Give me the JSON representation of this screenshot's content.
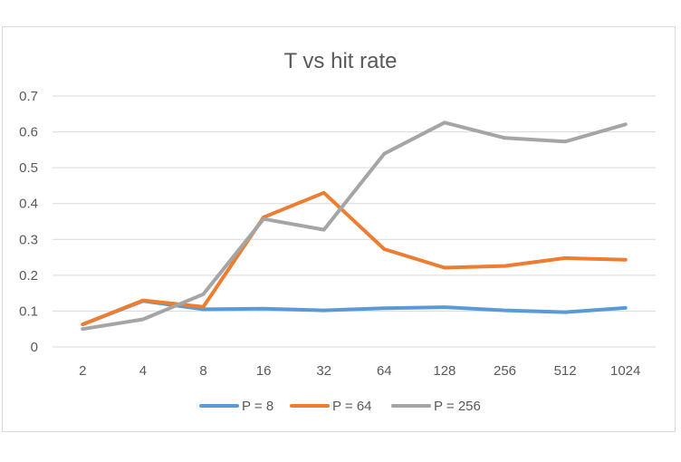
{
  "chart_data": {
    "type": "line",
    "title": "T vs hit rate",
    "xlabel": "",
    "ylabel": "",
    "categories": [
      "2",
      "4",
      "8",
      "16",
      "32",
      "64",
      "128",
      "256",
      "512",
      "1024"
    ],
    "ylim": [
      0,
      0.7
    ],
    "yticks": [
      "0",
      "0.1",
      "0.2",
      "0.3",
      "0.4",
      "0.5",
      "0.6",
      "0.7"
    ],
    "grid": true,
    "legend": "bottom",
    "series": [
      {
        "name": "P = 8",
        "color": "#5b9bd5",
        "values": [
          0.063,
          0.128,
          0.105,
          0.107,
          0.102,
          0.108,
          0.111,
          0.102,
          0.097,
          0.109
        ]
      },
      {
        "name": "P = 64",
        "color": "#ed7d31",
        "values": [
          0.063,
          0.13,
          0.112,
          0.362,
          0.43,
          0.273,
          0.221,
          0.226,
          0.248,
          0.243
        ]
      },
      {
        "name": "P = 256",
        "color": "#a5a5a5",
        "values": [
          0.05,
          0.077,
          0.147,
          0.357,
          0.327,
          0.539,
          0.626,
          0.583,
          0.573,
          0.621
        ]
      }
    ]
  }
}
